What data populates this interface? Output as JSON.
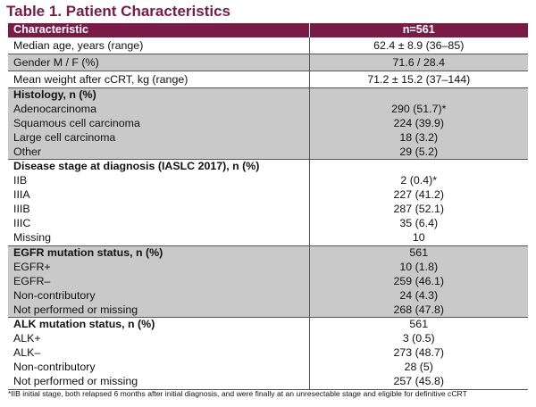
{
  "title": "Table 1. Patient Characteristics",
  "header": {
    "col1": "Characteristic",
    "col2": "n=561"
  },
  "simple_rows": [
    {
      "label": "Median age, years (range)",
      "value": "62.4 ± 8.9 (36–85)"
    },
    {
      "label": "Gender M / F (%)",
      "value": "71.6 / 28.4"
    },
    {
      "label": "Mean weight after cCRT, kg (range)",
      "value": "71.2 ± 15.2 (37–144)"
    }
  ],
  "histology": {
    "heading": "Histology, n (%)",
    "heading_value": "",
    "rows": [
      {
        "label": "Adenocarcinoma",
        "value": "290 (51.7)*"
      },
      {
        "label": "Squamous cell carcinoma",
        "value": "224 (39.9)"
      },
      {
        "label": "Large cell carcinoma",
        "value": "18 (3.2)"
      },
      {
        "label": "Other",
        "value": "29 (5.2)"
      }
    ]
  },
  "stage": {
    "heading": "Disease stage at diagnosis (IASLC 2017), n (%)",
    "heading_value": "",
    "rows": [
      {
        "label": "IIB",
        "value": "2 (0.4)*"
      },
      {
        "label": "IIIA",
        "value": "227 (41.2)"
      },
      {
        "label": "IIIB",
        "value": "287 (52.1)"
      },
      {
        "label": "IIIC",
        "value": "35 (6.4)"
      },
      {
        "label": "Missing",
        "value": "10"
      }
    ]
  },
  "egfr": {
    "heading": "EGFR mutation status, n (%)",
    "heading_value": "561",
    "rows": [
      {
        "label": "EGFR+",
        "value": "10 (1.8)"
      },
      {
        "label": "EGFR–",
        "value": "259 (46.1)"
      },
      {
        "label": "Non-contributory",
        "value": "24 (4.3)"
      },
      {
        "label": "Not performed or missing",
        "value": "268 (47.8)"
      }
    ]
  },
  "alk": {
    "heading": "ALK mutation status, n (%)",
    "heading_value": "561",
    "rows": [
      {
        "label": "ALK+",
        "value": "3 (0.5)"
      },
      {
        "label": "ALK–",
        "value": "273 (48.7)"
      },
      {
        "label": "Non-contributory",
        "value": "28 (5)"
      },
      {
        "label": "Not performed or missing",
        "value": "257 (45.8)"
      }
    ]
  },
  "footnote": "*IIB initial stage, both relapsed 6 months after initial diagnosis, and were finally at an unresectable stage and eligible for definitive cCRT",
  "colors": {
    "accent": "#7a1a47",
    "grey_band": "#c9c9c9"
  }
}
